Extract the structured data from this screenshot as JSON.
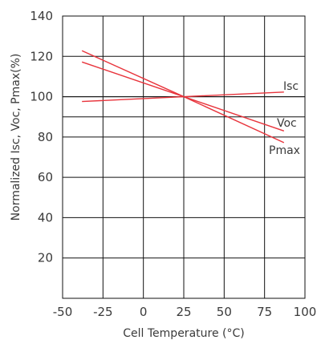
{
  "chart_data": {
    "type": "line",
    "title": "",
    "xlabel": "Cell Temperature (°C)",
    "ylabel": "Normalized Isc, Voc, Pmax(%)",
    "xlim": [
      -50,
      100
    ],
    "ylim": [
      0,
      140
    ],
    "x_ticks": [
      -50,
      -25,
      0,
      25,
      50,
      75,
      100
    ],
    "x_tick_labels": [
      "-50",
      "-25",
      "0",
      "25",
      "50",
      "75",
      "100"
    ],
    "y_ticks": [
      20,
      40,
      60,
      80,
      100,
      120,
      140
    ],
    "y_tick_labels": [
      "20",
      "40",
      "60",
      "80",
      "100",
      "120",
      "140"
    ],
    "grid": true,
    "reference_lines": [
      100,
      90
    ],
    "series": [
      {
        "name": "Isc",
        "color": "#e8343c",
        "x": [
          -38,
          25,
          87
        ],
        "y": [
          97.6,
          100,
          102.3
        ]
      },
      {
        "name": "Voc",
        "color": "#e8343c",
        "x": [
          -38,
          25,
          87
        ],
        "y": [
          117.2,
          100,
          83.0
        ]
      },
      {
        "name": "Pmax",
        "color": "#e8343c",
        "x": [
          -38,
          25,
          87
        ],
        "y": [
          122.8,
          100,
          77.2
        ]
      }
    ]
  }
}
